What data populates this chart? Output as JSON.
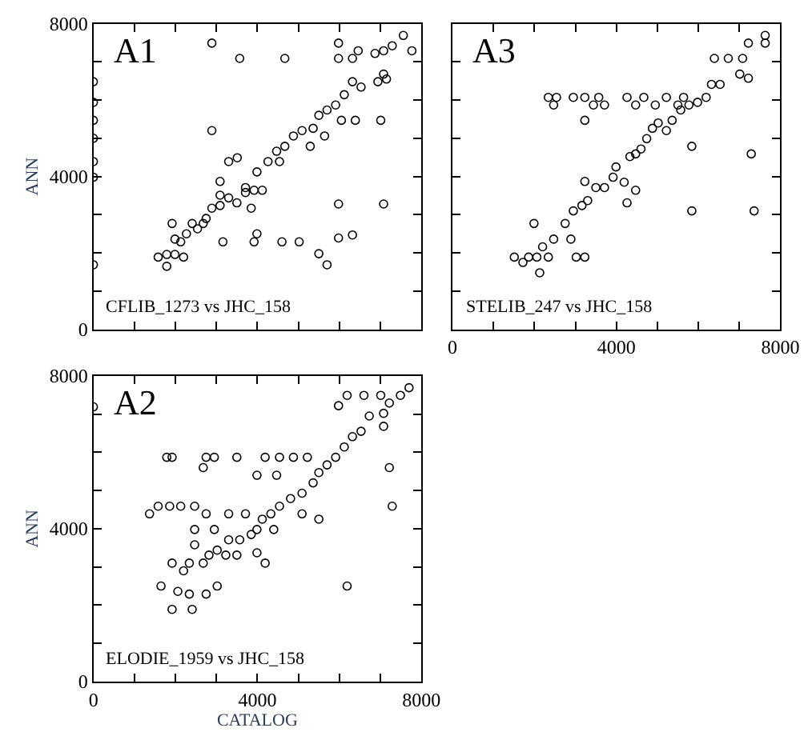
{
  "chart_data": [
    {
      "type": "scatter",
      "ylabel": "ANN",
      "annotations": [
        "A1",
        "CFLIB_1273 vs JHC_158"
      ],
      "marker": "circle",
      "tick_labels": "y",
      "xlim": [
        0,
        8000
      ],
      "ylim": [
        0,
        8000
      ],
      "xticks": [
        0,
        {
          "value": 1000,
          "label": null
        },
        {
          "value": 2000,
          "label": null
        },
        {
          "value": 3000,
          "label": null
        },
        4000,
        {
          "value": 5000,
          "label": null
        },
        {
          "value": 6000,
          "label": null
        },
        {
          "value": 7000,
          "label": null
        },
        8000
      ],
      "yticks": [
        0,
        {
          "value": 1000,
          "label": null
        },
        {
          "value": 2000,
          "label": null
        },
        {
          "value": 3000,
          "label": null
        },
        4000,
        {
          "value": 5000,
          "label": null
        },
        {
          "value": 6000,
          "label": null
        },
        {
          "value": 7000,
          "label": null
        },
        8000
      ],
      "series": [
        {
          "color": "#000000",
          "x": [
            1580,
            1790,
            1990,
            2130,
            2200,
            2410,
            2540,
            2750,
            2890,
            3090,
            3300,
            3500,
            3710,
            3920,
            4120,
            3990,
            4260,
            4470,
            4670,
            4880,
            5090,
            5360,
            5500,
            5700,
            5910,
            6120,
            6320,
            6530,
            6050,
            6390,
            5640,
            5290,
            4540,
            3710,
            3090,
            2680,
            2270,
            1990,
            5980,
            6320,
            6460,
            6870,
            7080,
            7290,
            7560,
            7770,
            7080,
            7150,
            6940,
            2890,
            3570,
            4670,
            5980,
            2890,
            3300,
            3510,
            3090,
            3850,
            3990,
            3920,
            3160,
            4600,
            5020,
            5500,
            5700,
            5980,
            6320,
            5980,
            7080,
            7010,
            1790,
            1920,
            0,
            0,
            0,
            0,
            0,
            0,
            0
          ],
          "values": [
            1890,
            1960,
            2360,
            2290,
            1890,
            2770,
            2630,
            2900,
            3170,
            3240,
            3440,
            3310,
            3710,
            3640,
            3640,
            4120,
            4390,
            4660,
            4790,
            5060,
            5200,
            5260,
            5600,
            5740,
            5870,
            6140,
            6480,
            6340,
            5470,
            5470,
            5060,
            4790,
            4390,
            3580,
            3510,
            2770,
            2500,
            1960,
            7090,
            7090,
            7290,
            7220,
            7290,
            7420,
            7690,
            7290,
            6680,
            6550,
            6480,
            7490,
            7090,
            7090,
            7490,
            5200,
            4390,
            4490,
            3870,
            3170,
            2500,
            2290,
            2290,
            2290,
            2290,
            1980,
            1690,
            2390,
            2470,
            3280,
            3280,
            5470,
            1650,
            2770,
            6480,
            5940,
            5470,
            5000,
            4390,
            3980,
            1690
          ]
        }
      ]
    },
    {
      "type": "scatter",
      "annotations": [
        "A3",
        "STELIB_247 vs JHC_158"
      ],
      "marker": "circle",
      "tick_labels": "x",
      "xlim": [
        0,
        8000
      ],
      "ylim": [
        0,
        8000
      ],
      "xticks": [
        0,
        {
          "value": 1000,
          "label": null
        },
        {
          "value": 2000,
          "label": null
        },
        {
          "value": 3000,
          "label": null
        },
        4000,
        {
          "value": 5000,
          "label": null
        },
        {
          "value": 6000,
          "label": null
        },
        {
          "value": 7000,
          "label": null
        },
        8000
      ],
      "yticks": [
        0,
        {
          "value": 1000,
          "label": null
        },
        {
          "value": 2000,
          "label": null
        },
        {
          "value": 3000,
          "label": null
        },
        4000,
        {
          "value": 5000,
          "label": null
        },
        {
          "value": 6000,
          "label": null
        },
        {
          "value": 7000,
          "label": null
        },
        8000
      ],
      "series": [
        {
          "color": "#000000",
          "x": [
            1510,
            1720,
            1860,
            2060,
            2130,
            2340,
            2200,
            2470,
            2750,
            2890,
            3020,
            3230,
            2950,
            3160,
            3300,
            3500,
            3710,
            3920,
            3990,
            4190,
            4260,
            4470,
            4330,
            4470,
            4600,
            4740,
            4880,
            5020,
            5220,
            5360,
            5570,
            5770,
            5980,
            6190,
            6320,
            6530,
            6390,
            6730,
            7080,
            7010,
            7220,
            7220,
            7630,
            7630,
            5840,
            5840,
            7290,
            7360,
            2340,
            2540,
            2470,
            2950,
            3230,
            3440,
            3570,
            3710,
            3230,
            4260,
            4470,
            4670,
            4950,
            5220,
            5500,
            5640,
            3230,
            1990
          ],
          "values": [
            1890,
            1750,
            1890,
            1890,
            1480,
            1890,
            2160,
            2360,
            2770,
            2360,
            1890,
            1890,
            3100,
            3240,
            3370,
            3710,
            3710,
            3980,
            4250,
            3850,
            3310,
            3640,
            4520,
            4590,
            4720,
            4990,
            5260,
            5400,
            5200,
            5470,
            5740,
            5870,
            5940,
            6070,
            6410,
            6410,
            7090,
            7090,
            7090,
            6680,
            6570,
            7490,
            7690,
            7490,
            4790,
            3100,
            4590,
            3100,
            6070,
            6070,
            5870,
            6070,
            6070,
            5870,
            6070,
            5870,
            5470,
            6070,
            5870,
            6070,
            5870,
            6070,
            5870,
            6070,
            3870,
            2770
          ]
        }
      ]
    },
    {
      "type": "scatter",
      "xlabel": "CATALOG",
      "ylabel": "ANN",
      "annotations": [
        "A2",
        "ELODIE_1959 vs JHC_158"
      ],
      "marker": "circle",
      "xlim": [
        0,
        8000
      ],
      "ylim": [
        0,
        8000
      ],
      "xticks": [
        0,
        {
          "value": 1000,
          "label": null
        },
        {
          "value": 2000,
          "label": null
        },
        {
          "value": 3000,
          "label": null
        },
        4000,
        {
          "value": 5000,
          "label": null
        },
        {
          "value": 6000,
          "label": null
        },
        {
          "value": 7000,
          "label": null
        },
        8000
      ],
      "yticks": [
        0,
        {
          "value": 1000,
          "label": null
        },
        {
          "value": 2000,
          "label": null
        },
        {
          "value": 3000,
          "label": null
        },
        4000,
        {
          "value": 5000,
          "label": null
        },
        {
          "value": 6000,
          "label": null
        },
        {
          "value": 7000,
          "label": null
        },
        8000
      ],
      "series": [
        {
          "color": "#000000",
          "x": [
            1920,
            2410,
            1650,
            2060,
            2340,
            2750,
            3020,
            1920,
            2340,
            2200,
            2680,
            2820,
            3020,
            3230,
            3500,
            3300,
            3570,
            3850,
            3990,
            3990,
            4190,
            4120,
            4330,
            4540,
            4810,
            5090,
            5360,
            5500,
            5700,
            5910,
            6120,
            6320,
            6530,
            6730,
            7080,
            7220,
            7490,
            7700,
            6190,
            5980,
            6600,
            7010,
            7080,
            7220,
            7290,
            6190,
            5500,
            5090,
            4400,
            2750,
            2470,
            2470,
            2950,
            1370,
            1580,
            1860,
            2130,
            2470,
            1790,
            1920,
            2750,
            2950,
            3500,
            2680,
            4190,
            4540,
            4880,
            5220,
            3990,
            4470,
            0,
            3300,
            3710
          ],
          "values": [
            1890,
            1890,
            2500,
            2360,
            2290,
            2290,
            2500,
            3100,
            3100,
            2900,
            3100,
            3310,
            3440,
            3310,
            3310,
            3710,
            3710,
            3850,
            3980,
            3370,
            3100,
            4250,
            4390,
            4590,
            4790,
            4930,
            5200,
            5470,
            5670,
            5870,
            6140,
            6410,
            6550,
            6950,
            7020,
            7290,
            7490,
            7690,
            7490,
            7220,
            7490,
            7490,
            6680,
            5600,
            4590,
            2500,
            4250,
            4390,
            3980,
            4390,
            3980,
            3580,
            3980,
            4390,
            4590,
            4590,
            4590,
            4590,
            5870,
            5870,
            5870,
            5870,
            5870,
            5600,
            5870,
            5870,
            5870,
            5870,
            5400,
            5400,
            7190,
            4390,
            4390
          ]
        }
      ]
    }
  ]
}
